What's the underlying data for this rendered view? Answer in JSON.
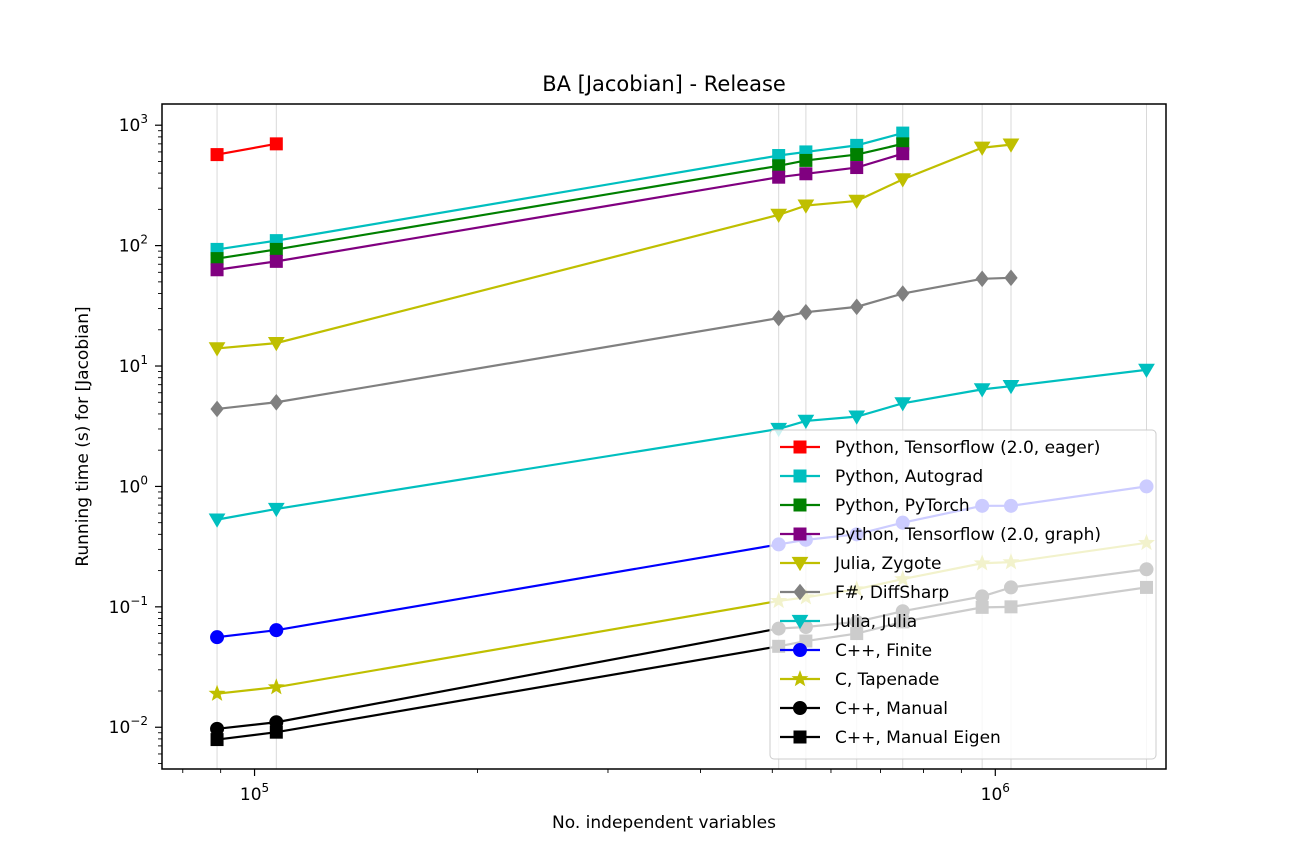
{
  "chart_data": {
    "type": "line",
    "title": "BA [Jacobian] - Release",
    "xlabel": "No. independent variables",
    "ylabel": "Running time (s) for [Jacobian]",
    "x_scale": "log",
    "y_scale": "log",
    "xlim": [
      75000,
      1700000
    ],
    "ylim": [
      0.0045,
      1500
    ],
    "x_ticks": [
      {
        "value": 100000,
        "base": "10",
        "exp": "5"
      },
      {
        "value": 1000000,
        "base": "10",
        "exp": "6"
      }
    ],
    "y_ticks": [
      {
        "value": 0.01,
        "base": "10",
        "exp": "−2"
      },
      {
        "value": 0.1,
        "base": "10",
        "exp": "−1"
      },
      {
        "value": 1,
        "base": "10",
        "exp": "0"
      },
      {
        "value": 10,
        "base": "10",
        "exp": "1"
      },
      {
        "value": 100,
        "base": "10",
        "exp": "2"
      },
      {
        "value": 1000,
        "base": "10",
        "exp": "3"
      }
    ],
    "grid": "x-major-and-minor",
    "grid_lines_x": [
      89000,
      107000,
      510000,
      555000,
      650000,
      750000,
      960000,
      1050000,
      1600000
    ],
    "legend_position": "lower-right",
    "series": [
      {
        "name": "Python, Tensorflow (2.0, eager)",
        "color": "#ff0000",
        "marker": "square",
        "x": [
          89000,
          107000
        ],
        "y": [
          570,
          700
        ]
      },
      {
        "name": "Python, Autograd",
        "color": "#00bfbf",
        "marker": "square",
        "x": [
          89000,
          107000,
          510000,
          555000,
          650000,
          750000
        ],
        "y": [
          93,
          110,
          560,
          600,
          680,
          860
        ]
      },
      {
        "name": "Python, PyTorch",
        "color": "#008000",
        "marker": "square",
        "x": [
          89000,
          107000,
          510000,
          555000,
          650000,
          750000
        ],
        "y": [
          78,
          93,
          460,
          510,
          570,
          700
        ]
      },
      {
        "name": "Python, Tensorflow (2.0, graph)",
        "color": "#800080",
        "marker": "square",
        "x": [
          89000,
          107000,
          510000,
          555000,
          650000,
          750000
        ],
        "y": [
          63,
          74,
          370,
          395,
          445,
          580
        ]
      },
      {
        "name": "Julia, Zygote",
        "color": "#bfbf00",
        "marker": "triangle-down",
        "x": [
          89000,
          107000,
          510000,
          555000,
          650000,
          750000,
          960000,
          1050000
        ],
        "y": [
          14,
          15.5,
          180,
          215,
          235,
          355,
          650,
          690
        ]
      },
      {
        "name": "F#, DiffSharp",
        "color": "#808080",
        "marker": "diamond",
        "x": [
          89000,
          107000,
          510000,
          555000,
          650000,
          750000,
          960000,
          1050000
        ],
        "y": [
          4.4,
          5.0,
          25,
          28,
          31,
          40,
          53,
          54
        ]
      },
      {
        "name": "Julia, Julia",
        "color": "#00bfbf",
        "marker": "triangle-down",
        "x": [
          89000,
          107000,
          510000,
          555000,
          650000,
          750000,
          960000,
          1050000,
          1600000
        ],
        "y": [
          0.53,
          0.65,
          3.0,
          3.5,
          3.8,
          4.9,
          6.4,
          6.8,
          9.3
        ]
      },
      {
        "name": "C++, Finite",
        "color": "#0000ff",
        "marker": "circle",
        "x": [
          89000,
          107000,
          510000,
          555000,
          650000,
          750000,
          960000,
          1050000,
          1600000
        ],
        "y": [
          0.056,
          0.064,
          0.33,
          0.36,
          0.4,
          0.5,
          0.69,
          0.69,
          1.0
        ]
      },
      {
        "name": "C, Tapenade",
        "color": "#bfbf00",
        "marker": "star",
        "x": [
          89000,
          107000,
          510000,
          555000,
          650000,
          750000,
          960000,
          1050000,
          1600000
        ],
        "y": [
          0.019,
          0.0215,
          0.112,
          0.12,
          0.14,
          0.17,
          0.23,
          0.235,
          0.34
        ]
      },
      {
        "name": "C++, Manual",
        "color": "#000000",
        "marker": "circle",
        "x": [
          89000,
          107000,
          510000,
          555000,
          650000,
          750000,
          960000,
          1050000,
          1600000
        ],
        "y": [
          0.0097,
          0.011,
          0.066,
          0.068,
          0.075,
          0.092,
          0.122,
          0.145,
          0.205
        ]
      },
      {
        "name": "C++, Manual Eigen",
        "color": "#000000",
        "marker": "square",
        "x": [
          89000,
          107000,
          510000,
          555000,
          650000,
          750000,
          960000,
          1050000,
          1600000
        ],
        "y": [
          0.0079,
          0.0091,
          0.047,
          0.052,
          0.06,
          0.075,
          0.099,
          0.1,
          0.145
        ]
      }
    ]
  }
}
